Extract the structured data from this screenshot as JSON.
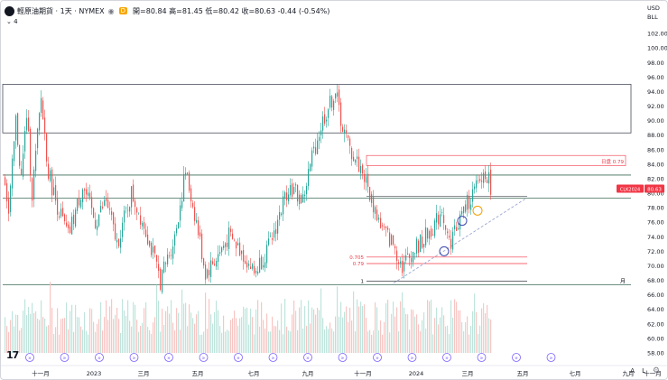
{
  "header": {
    "symbol": "輕原油期貨 · 1天 · NYMEX",
    "ohlc_text": "開=80.84  高=81.45  低=80.42  收=80.63  -0.44 (-0.54%)",
    "indicator_count": "4",
    "close_label": "CLK2024"
  },
  "price_axis": {
    "currency": "USD",
    "unit": "BLL",
    "ticks": [
      102,
      100,
      98,
      96,
      94,
      92,
      90,
      88,
      86,
      84,
      82,
      80,
      78,
      76,
      74,
      72,
      70,
      68,
      66,
      64,
      62,
      60,
      58
    ],
    "tick_labels": [
      "102.00",
      "100.00",
      "98.00",
      "96.00",
      "94.00",
      "92.00",
      "90.00",
      "88.00",
      "86.00",
      "84.00",
      "82.00",
      "80.00",
      "78.00",
      "76.00",
      "74.00",
      "72.00",
      "70.00",
      "68.00",
      "66.00",
      "64.00",
      "62.00",
      "60.00",
      "58.00"
    ],
    "last_price": "80.63"
  },
  "time_axis": {
    "labels": [
      "十一月",
      "2023",
      "三月",
      "五月",
      "七月",
      "九月",
      "十一月",
      "2024",
      "三月",
      "五月",
      "七月",
      "九月",
      "十一月"
    ]
  },
  "annotations": {
    "expiry_label": "日盘 0.79",
    "fib_0705": "0.705",
    "fib_079": "0.79",
    "fib_1": "1",
    "month_label": "月"
  },
  "chart_data": {
    "type": "candlestick",
    "title": "輕原油期貨 · 1天 · NYMEX",
    "xlabel": "",
    "ylabel": "",
    "ylim": [
      57,
      104
    ],
    "last": {
      "open": 80.84,
      "high": 81.45,
      "low": 80.42,
      "close": 80.63,
      "change": -0.44,
      "change_pct": -0.54
    },
    "path_anchors": [
      [
        0,
        82
      ],
      [
        4,
        77
      ],
      [
        12,
        90
      ],
      [
        18,
        82
      ],
      [
        24,
        91
      ],
      [
        30,
        80
      ],
      [
        40,
        93
      ],
      [
        48,
        83
      ],
      [
        56,
        79
      ],
      [
        70,
        74
      ],
      [
        86,
        81
      ],
      [
        100,
        76
      ],
      [
        112,
        79
      ],
      [
        124,
        73
      ],
      [
        140,
        80
      ],
      [
        156,
        75
      ],
      [
        172,
        68
      ],
      [
        188,
        74
      ],
      [
        200,
        83
      ],
      [
        212,
        76
      ],
      [
        222,
        69
      ],
      [
        234,
        71
      ],
      [
        248,
        74
      ],
      [
        262,
        72
      ],
      [
        276,
        69
      ],
      [
        294,
        73
      ],
      [
        314,
        81
      ],
      [
        330,
        79
      ],
      [
        340,
        85
      ],
      [
        352,
        90
      ],
      [
        366,
        94
      ],
      [
        374,
        89
      ],
      [
        382,
        86
      ],
      [
        396,
        83
      ],
      [
        406,
        79
      ],
      [
        418,
        75
      ],
      [
        430,
        73
      ],
      [
        440,
        70
      ],
      [
        452,
        72
      ],
      [
        466,
        74
      ],
      [
        478,
        76
      ],
      [
        484,
        78
      ],
      [
        492,
        73
      ],
      [
        502,
        76
      ],
      [
        514,
        79
      ],
      [
        524,
        81
      ],
      [
        532,
        83
      ],
      [
        538,
        81
      ]
    ],
    "bars_total": 270,
    "horizontal_levels": [
      95,
      88.3,
      82.5,
      79.3,
      67.4
    ],
    "fib_levels": [
      {
        "label": "0.705",
        "value": 71.2
      },
      {
        "label": "0.79",
        "value": 70.3
      },
      {
        "label": "1",
        "value": 67.9
      }
    ],
    "colors": {
      "up": "#26a69a",
      "down": "#ef5350",
      "level": "#3d6b5a",
      "fib": "#f23645",
      "trend": "#9ba7d3"
    }
  }
}
